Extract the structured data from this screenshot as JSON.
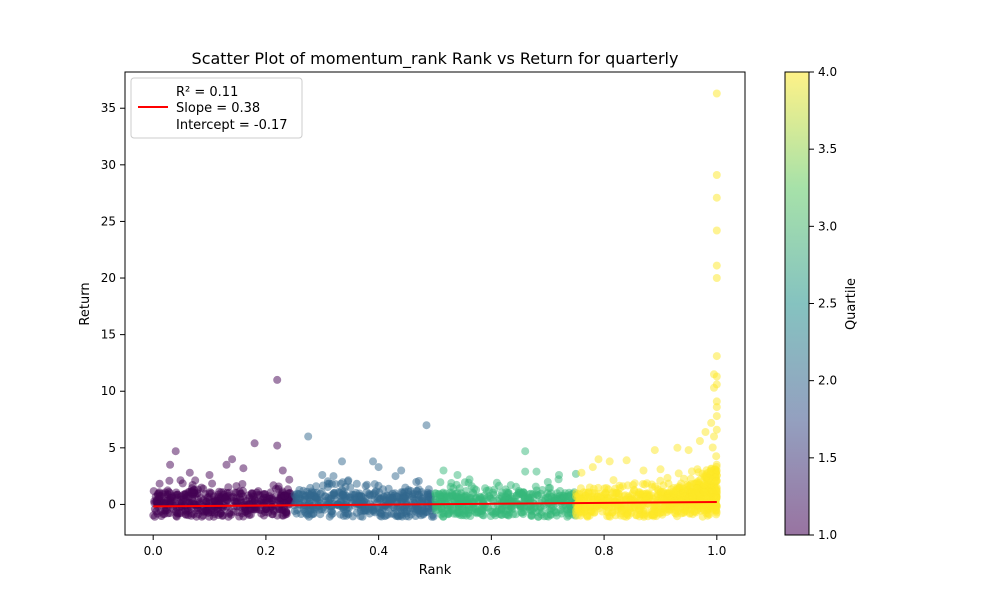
{
  "chart_data": {
    "type": "scatter",
    "title": "Scatter Plot of momentum_rank Rank vs Return for quarterly",
    "xlabel": "Rank",
    "ylabel": "Return",
    "xlim": [
      -0.05,
      1.05
    ],
    "ylim": [
      -2.7,
      38.2
    ],
    "x_ticks": [
      0.0,
      0.2,
      0.4,
      0.6,
      0.8,
      1.0
    ],
    "x_tick_labels": [
      "0.0",
      "0.2",
      "0.4",
      "0.6",
      "0.8",
      "1.0"
    ],
    "y_ticks": [
      0,
      5,
      10,
      15,
      20,
      25,
      30,
      35
    ],
    "y_tick_labels": [
      "0",
      "5",
      "10",
      "15",
      "20",
      "25",
      "30",
      "35"
    ],
    "grid": false,
    "legend": {
      "placement": "upper-left",
      "entries": [
        "R² = 0.11",
        "Slope = 0.38",
        "Intercept = -0.17"
      ],
      "line_color": "#ff0000"
    },
    "regression": {
      "slope": 0.38,
      "intercept": -0.17,
      "x_range": [
        0.0,
        1.0
      ],
      "color": "#ff0000"
    },
    "colorbar": {
      "label": "Quartile",
      "range": [
        1.0,
        4.0
      ],
      "ticks": [
        1.0,
        1.5,
        2.0,
        2.5,
        3.0,
        3.5,
        4.0
      ],
      "tick_labels": [
        "1.0",
        "1.5",
        "2.0",
        "2.5",
        "3.0",
        "3.5",
        "4.0"
      ],
      "colormap": [
        "#440154",
        "#3b528b",
        "#21918c",
        "#5ec962",
        "#fde725"
      ]
    },
    "quartile_colors": [
      "#440154",
      "#31688e",
      "#35b779",
      "#fde725"
    ],
    "outliers": [
      {
        "x": 0.22,
        "y": 11.0,
        "q": 1
      },
      {
        "x": 0.18,
        "y": 5.4,
        "q": 1
      },
      {
        "x": 0.22,
        "y": 5.2,
        "q": 1
      },
      {
        "x": 0.04,
        "y": 4.7,
        "q": 1
      },
      {
        "x": 0.14,
        "y": 4.0,
        "q": 1
      },
      {
        "x": 0.03,
        "y": 3.5,
        "q": 1
      },
      {
        "x": 0.065,
        "y": 2.8,
        "q": 1
      },
      {
        "x": 0.13,
        "y": 3.5,
        "q": 1
      },
      {
        "x": 0.16,
        "y": 3.2,
        "q": 1
      },
      {
        "x": 0.23,
        "y": 3.0,
        "q": 1
      },
      {
        "x": 0.1,
        "y": 2.6,
        "q": 1
      },
      {
        "x": 0.485,
        "y": 7.0,
        "q": 2
      },
      {
        "x": 0.275,
        "y": 6.0,
        "q": 2
      },
      {
        "x": 0.335,
        "y": 3.8,
        "q": 2
      },
      {
        "x": 0.39,
        "y": 3.8,
        "q": 2
      },
      {
        "x": 0.4,
        "y": 3.3,
        "q": 2
      },
      {
        "x": 0.44,
        "y": 3.0,
        "q": 2
      },
      {
        "x": 0.3,
        "y": 2.6,
        "q": 2
      },
      {
        "x": 0.32,
        "y": 2.5,
        "q": 2
      },
      {
        "x": 0.43,
        "y": 2.5,
        "q": 2
      },
      {
        "x": 0.66,
        "y": 4.7,
        "q": 3
      },
      {
        "x": 0.66,
        "y": 2.9,
        "q": 3
      },
      {
        "x": 0.68,
        "y": 2.9,
        "q": 3
      },
      {
        "x": 0.515,
        "y": 3.0,
        "q": 3
      },
      {
        "x": 0.54,
        "y": 2.6,
        "q": 3
      },
      {
        "x": 0.72,
        "y": 2.6,
        "q": 3
      },
      {
        "x": 0.75,
        "y": 2.7,
        "q": 3
      },
      {
        "x": 1.0,
        "y": 36.3,
        "q": 4
      },
      {
        "x": 1.0,
        "y": 29.1,
        "q": 4
      },
      {
        "x": 1.0,
        "y": 27.1,
        "q": 4
      },
      {
        "x": 1.0,
        "y": 24.2,
        "q": 4
      },
      {
        "x": 1.0,
        "y": 21.1,
        "q": 4
      },
      {
        "x": 1.0,
        "y": 20.0,
        "q": 4
      },
      {
        "x": 1.0,
        "y": 13.1,
        "q": 4
      },
      {
        "x": 0.995,
        "y": 11.5,
        "q": 4
      },
      {
        "x": 1.0,
        "y": 11.3,
        "q": 4
      },
      {
        "x": 0.995,
        "y": 10.3,
        "q": 4
      },
      {
        "x": 1.0,
        "y": 10.6,
        "q": 4
      },
      {
        "x": 1.0,
        "y": 9.1,
        "q": 4
      },
      {
        "x": 1.0,
        "y": 8.6,
        "q": 4
      },
      {
        "x": 1.0,
        "y": 7.8,
        "q": 4
      },
      {
        "x": 0.99,
        "y": 7.2,
        "q": 4
      },
      {
        "x": 1.0,
        "y": 6.6,
        "q": 4
      },
      {
        "x": 0.98,
        "y": 6.4,
        "q": 4
      },
      {
        "x": 0.995,
        "y": 6.0,
        "q": 4
      },
      {
        "x": 0.97,
        "y": 5.6,
        "q": 4
      },
      {
        "x": 0.93,
        "y": 5.0,
        "q": 4
      },
      {
        "x": 0.89,
        "y": 4.8,
        "q": 4
      },
      {
        "x": 0.95,
        "y": 4.8,
        "q": 4
      },
      {
        "x": 0.79,
        "y": 4.0,
        "q": 4
      },
      {
        "x": 0.81,
        "y": 3.8,
        "q": 4
      },
      {
        "x": 0.84,
        "y": 3.9,
        "q": 4
      },
      {
        "x": 0.78,
        "y": 3.3,
        "q": 4
      },
      {
        "x": 0.87,
        "y": 3.0,
        "q": 4
      },
      {
        "x": 0.9,
        "y": 3.1,
        "q": 4
      },
      {
        "x": 0.76,
        "y": 2.8,
        "q": 4
      }
    ]
  }
}
